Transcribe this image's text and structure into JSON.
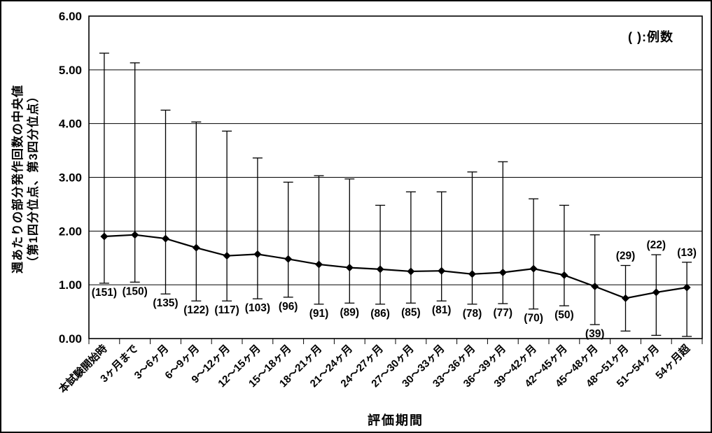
{
  "figure": {
    "legend_note": "( ):例数",
    "xlabel": "評価期間",
    "ylabel_line1": "週あたりの部分発作回数の中央値",
    "ylabel_line2": "（第1四分位点、第3四分位点）"
  },
  "chart_data": {
    "type": "line",
    "title": "",
    "xlabel": "評価期間",
    "ylabel": "週あたりの部分発作回数の中央値（第1四分位点、第3四分位点）",
    "legend_note": "( ):例数",
    "legend_position": "top-right-inside",
    "grid": "horizontal",
    "marker": "diamond",
    "line_color": "#000000",
    "background_color": "#ffffff",
    "ylim": [
      0,
      6
    ],
    "ytick_labels": [
      "0.00",
      "1.00",
      "2.00",
      "3.00",
      "4.00",
      "5.00",
      "6.00"
    ],
    "categories": [
      "本試験開始時",
      "3ヶ月まで",
      "3～6ヶ月",
      "6～9ヶ月",
      "9～12ヶ月",
      "12～15ヶ月",
      "15～18ヶ月",
      "18～21ヶ月",
      "21～24ヶ月",
      "24～27ヶ月",
      "27～30ヶ月",
      "30～33ヶ月",
      "33～36ヶ月",
      "36～39ヶ月",
      "39～42ヶ月",
      "42～45ヶ月",
      "45～48ヶ月",
      "48～51ヶ月",
      "51～54ヶ月",
      "54ヶ月超"
    ],
    "series": [
      {
        "name": "週あたりの部分発作回数の中央値",
        "values": [
          1.9,
          1.93,
          1.86,
          1.69,
          1.54,
          1.57,
          1.48,
          1.38,
          1.32,
          1.29,
          1.25,
          1.26,
          1.2,
          1.23,
          1.3,
          1.18,
          0.97,
          0.75,
          0.86,
          0.95
        ]
      },
      {
        "name": "第1四分位点",
        "values": [
          1.03,
          1.05,
          0.83,
          0.7,
          0.7,
          0.74,
          0.77,
          0.64,
          0.66,
          0.64,
          0.66,
          0.7,
          0.64,
          0.65,
          0.55,
          0.61,
          0.26,
          0.14,
          0.06,
          0.04
        ]
      },
      {
        "name": "第3四分位点",
        "values": [
          5.31,
          5.13,
          4.25,
          4.03,
          3.86,
          3.36,
          2.91,
          3.03,
          2.97,
          2.48,
          2.73,
          2.73,
          3.1,
          3.29,
          2.6,
          2.48,
          1.93,
          1.36,
          1.56,
          1.42
        ]
      }
    ],
    "n_counts": [
      151,
      150,
      135,
      122,
      117,
      103,
      96,
      91,
      89,
      86,
      85,
      81,
      78,
      77,
      70,
      50,
      39,
      29,
      22,
      13
    ],
    "n_labels": [
      "(151)",
      "(150)",
      "(135)",
      "(122)",
      "(117)",
      "(103)",
      "(96)",
      "(91)",
      "(89)",
      "(86)",
      "(85)",
      "(81)",
      "(78)",
      "(77)",
      "(70)",
      "(50)",
      "(39)",
      "(29)",
      "(22)",
      "(13)"
    ],
    "n_label_position": [
      "below",
      "below",
      "below",
      "below",
      "below",
      "below",
      "below",
      "below",
      "below",
      "below",
      "below",
      "below",
      "below",
      "below",
      "below",
      "below",
      "below",
      "above",
      "above",
      "above"
    ]
  }
}
